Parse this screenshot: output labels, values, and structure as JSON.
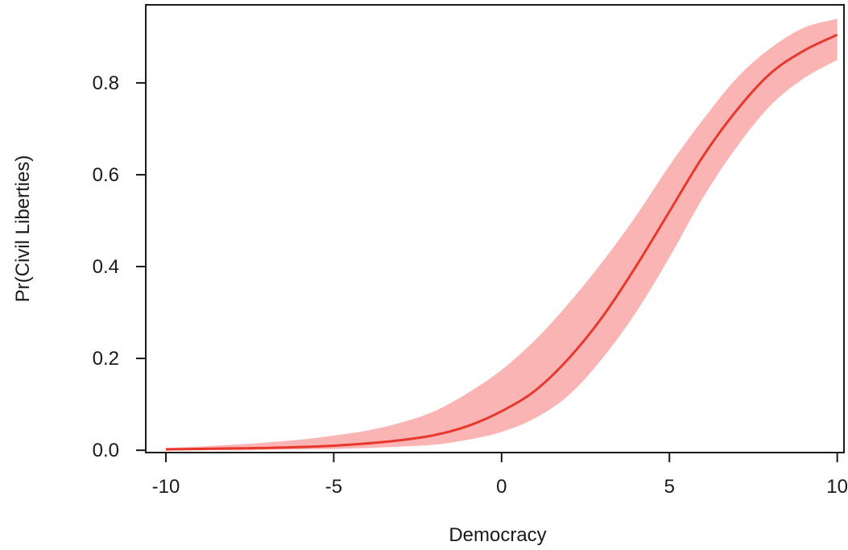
{
  "chart_data": {
    "type": "line",
    "title": "",
    "xlabel": "Democracy",
    "ylabel": "Pr(Civil Liberties)",
    "xlim": [
      -10.6,
      10.2
    ],
    "ylim": [
      -0.005,
      0.97
    ],
    "x_ticks": [
      -10,
      -5,
      0,
      5,
      10
    ],
    "x_tick_labels": [
      "-10",
      "-5",
      "0",
      "5",
      "10"
    ],
    "y_ticks": [
      0.0,
      0.2,
      0.4,
      0.6,
      0.8
    ],
    "y_tick_labels": [
      "0.0",
      "0.2",
      "0.4",
      "0.6",
      "0.8"
    ],
    "grid": false,
    "legend": "none",
    "series": [
      {
        "x": [
          -10,
          -9,
          -8,
          -7,
          -6,
          -5,
          -4,
          -3,
          -2,
          -1,
          0,
          1,
          2,
          3,
          4,
          5,
          6,
          7,
          8,
          9,
          10
        ],
        "values": [
          0.002,
          0.003,
          0.004,
          0.005,
          0.007,
          0.01,
          0.015,
          0.022,
          0.033,
          0.053,
          0.085,
          0.13,
          0.2,
          0.29,
          0.4,
          0.52,
          0.64,
          0.74,
          0.82,
          0.87,
          0.905
        ],
        "lower": [
          0.0,
          0.0,
          0.0,
          0.001,
          0.002,
          0.003,
          0.005,
          0.008,
          0.012,
          0.023,
          0.04,
          0.07,
          0.12,
          0.2,
          0.3,
          0.42,
          0.55,
          0.66,
          0.75,
          0.81,
          0.85
        ],
        "upper": [
          0.005,
          0.008,
          0.012,
          0.017,
          0.023,
          0.032,
          0.043,
          0.06,
          0.085,
          0.125,
          0.175,
          0.24,
          0.32,
          0.41,
          0.51,
          0.62,
          0.72,
          0.81,
          0.875,
          0.92,
          0.94
        ]
      }
    ],
    "colors": {
      "line": "#e8372c",
      "band": "#fbb4b4",
      "axis": "#1a1a1a"
    }
  }
}
